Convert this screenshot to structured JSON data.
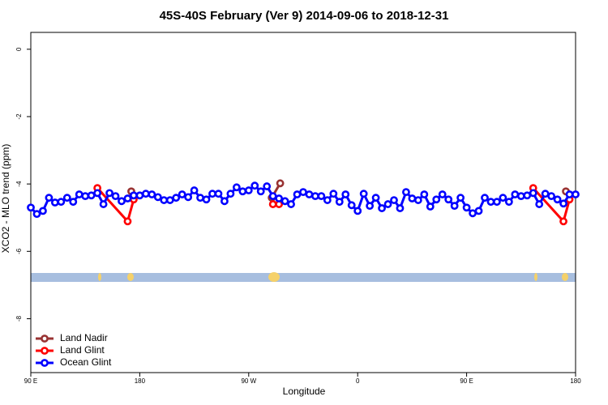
{
  "chart_data": {
    "type": "line",
    "title": "45S-40S February (Ver 9)   2014-09-06 to 2018-12-31",
    "x_label": "Longitude",
    "y_label": "XCO2 - MLO trend (ppm)",
    "xlim": [
      90,
      540
    ],
    "ylim": [
      -9.6,
      0.5
    ],
    "xticks": [
      {
        "value": 90,
        "label": "90 E"
      },
      180,
      {
        "value": 270,
        "label": "90 W"
      },
      {
        "value": 360,
        "label": "0"
      },
      {
        "value": 450,
        "label": "90 E"
      },
      {
        "value": 540,
        "label": "180"
      }
    ],
    "yticks": [
      0,
      -2,
      -4,
      -6,
      -8
    ],
    "legend": "bottomleft",
    "series": [
      {
        "name": "Land Nadir",
        "color": "#993333",
        "x": [
          173,
          230,
          289,
          296,
          450,
          532
        ],
        "values": [
          -4.22,
          null,
          -4.41,
          -3.98,
          null,
          -4.22
        ]
      },
      {
        "name": "Land Glint",
        "color": "#ff0000",
        "x": [
          145,
          170,
          175,
          230,
          290,
          295,
          450,
          505,
          530,
          535
        ],
        "values": [
          -4.12,
          -5.11,
          -4.46,
          null,
          -4.6,
          -4.6,
          null,
          -4.12,
          -5.11,
          -4.46
        ]
      },
      {
        "name": "Ocean Glint",
        "color": "#0000ff",
        "x": [
          90,
          95,
          100,
          105,
          110,
          115,
          120,
          125,
          130,
          135,
          140,
          145,
          150,
          155,
          160,
          165,
          170,
          175,
          180,
          185,
          190,
          195,
          200,
          205,
          210,
          215,
          220,
          225,
          230,
          235,
          240,
          245,
          250,
          255,
          260,
          265,
          270,
          275,
          280,
          285,
          290,
          295,
          300,
          305,
          310,
          315,
          320,
          325,
          330,
          335,
          340,
          345,
          350,
          355,
          360,
          365,
          370,
          375,
          380,
          385,
          390,
          395,
          400,
          405,
          410,
          415,
          420,
          425,
          430,
          435,
          440,
          445,
          450,
          455,
          460,
          465,
          470,
          475,
          480,
          485,
          490,
          495,
          500,
          505,
          510,
          515,
          520,
          525,
          530,
          535,
          540
        ],
        "values": [
          -4.7,
          -4.89,
          -4.8,
          -4.41,
          -4.55,
          -4.53,
          -4.41,
          -4.53,
          -4.31,
          -4.36,
          -4.34,
          -4.27,
          -4.6,
          -4.27,
          -4.36,
          -4.51,
          -4.43,
          -4.34,
          -4.34,
          -4.29,
          -4.31,
          -4.39,
          -4.48,
          -4.48,
          -4.41,
          -4.31,
          -4.39,
          -4.19,
          -4.41,
          -4.46,
          -4.29,
          -4.29,
          -4.51,
          -4.29,
          -4.1,
          -4.22,
          -4.19,
          -4.05,
          -4.22,
          -4.07,
          -4.36,
          -4.43,
          -4.51,
          -4.6,
          -4.31,
          -4.24,
          -4.31,
          -4.36,
          -4.36,
          -4.48,
          -4.29,
          -4.53,
          -4.31,
          -4.63,
          -4.8,
          -4.29,
          -4.65,
          -4.41,
          -4.72,
          -4.6,
          -4.48,
          -4.72,
          -4.24,
          -4.43,
          -4.48,
          -4.31,
          -4.67,
          -4.46,
          -4.31,
          -4.46,
          -4.65,
          -4.41,
          -4.7,
          -4.87,
          -4.8,
          -4.41,
          -4.53,
          -4.53,
          -4.41,
          -4.53,
          -4.31,
          -4.36,
          -4.34,
          -4.27,
          -4.6,
          -4.29,
          -4.36,
          -4.46,
          -4.58,
          -4.31,
          -4.31
        ]
      }
    ]
  }
}
